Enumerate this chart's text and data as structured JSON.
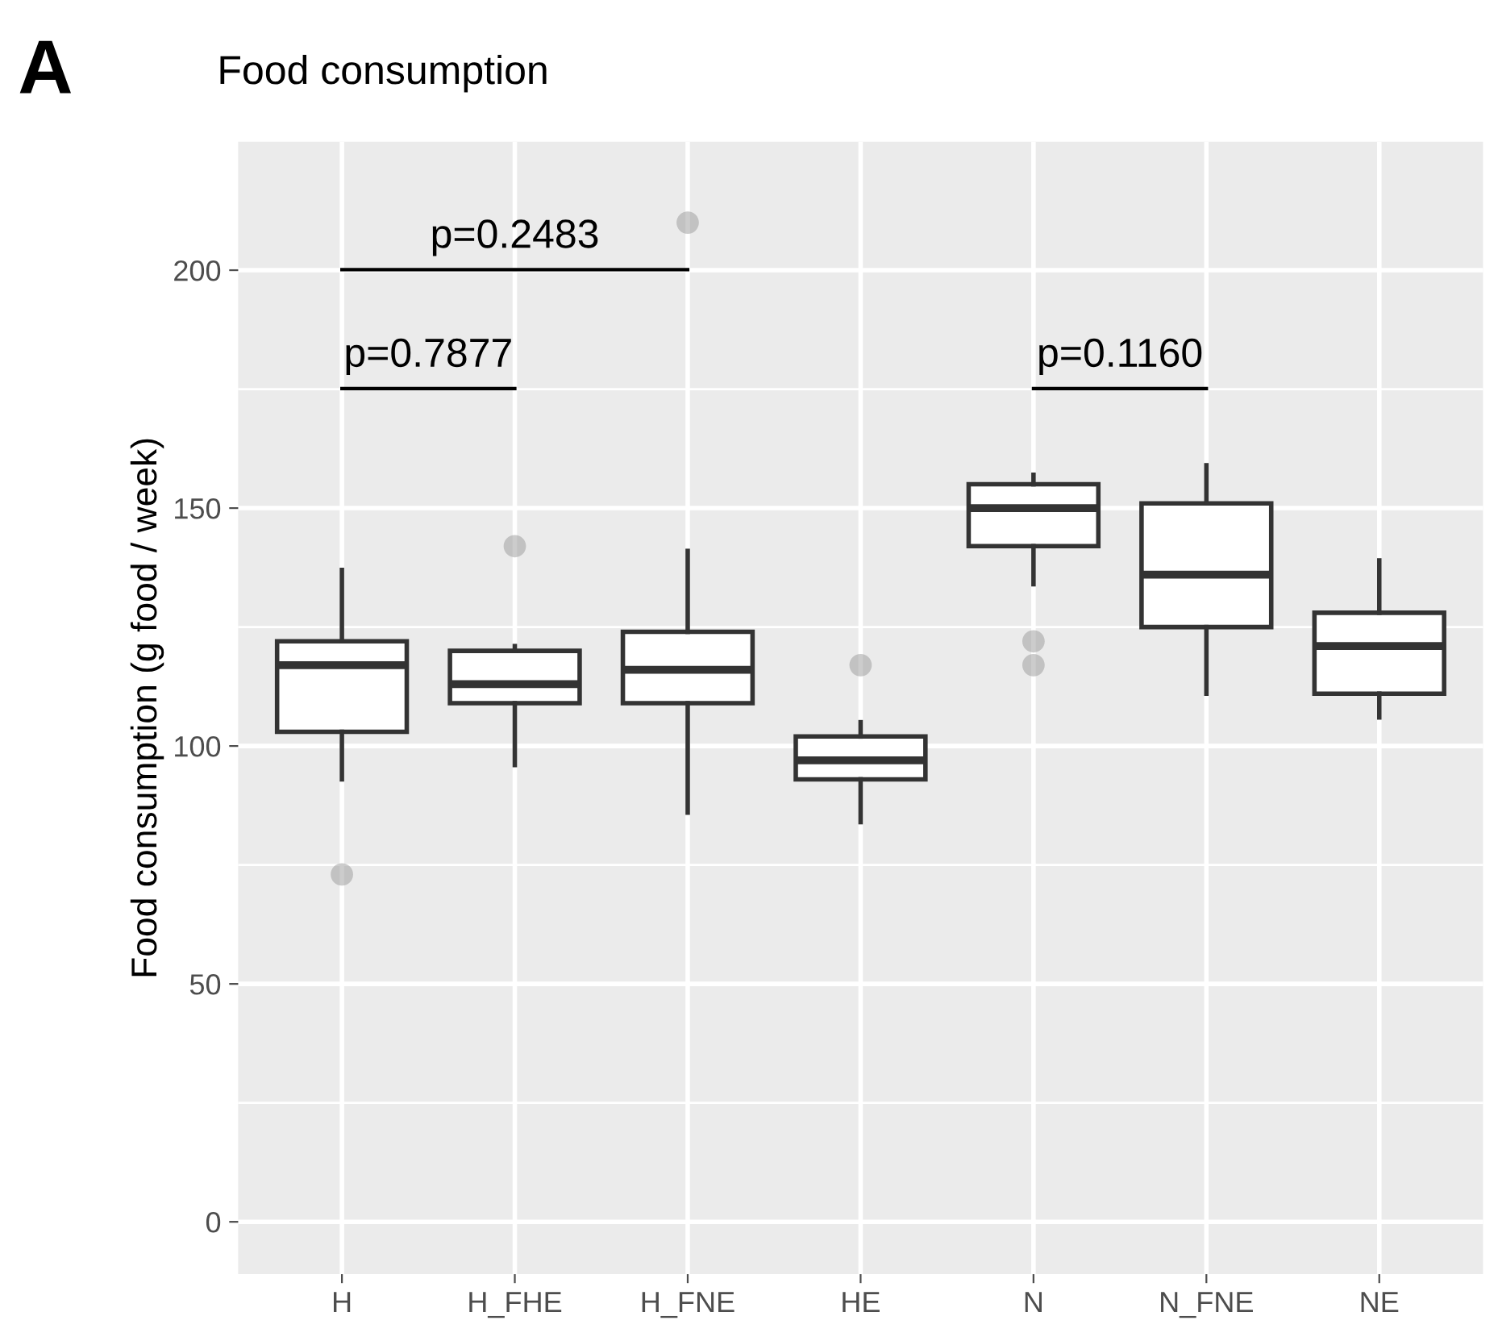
{
  "chart_data": {
    "type": "box",
    "title": "Food consumption",
    "ylabel": "Food consumption (g food / week)",
    "categories": [
      "H",
      "H_FHE",
      "H_FNE",
      "HE",
      "N",
      "N_FNE",
      "NE"
    ],
    "boxes": [
      {
        "low": 93,
        "q1": 103,
        "median": 117,
        "q3": 122,
        "high": 137,
        "outliers": [
          73
        ]
      },
      {
        "low": 96,
        "q1": 109,
        "median": 113,
        "q3": 120,
        "high": 121,
        "outliers": [
          142
        ]
      },
      {
        "low": 86,
        "q1": 109,
        "median": 116,
        "q3": 124,
        "high": 141,
        "outliers": [
          210
        ]
      },
      {
        "low": 84,
        "q1": 93,
        "median": 97,
        "q3": 102,
        "high": 105,
        "outliers": [
          117
        ]
      },
      {
        "low": 134,
        "q1": 142,
        "median": 150,
        "q3": 155,
        "high": 157,
        "outliers": [
          122,
          117
        ]
      },
      {
        "low": 111,
        "q1": 125,
        "median": 136,
        "q3": 151,
        "high": 159
      },
      {
        "low": 106,
        "q1": 111,
        "median": 121,
        "q3": 128,
        "high": 139
      }
    ],
    "ylim": [
      -11,
      227
    ],
    "yticks": [
      0,
      50,
      100,
      150,
      200
    ],
    "grid": true,
    "annotations": [
      "A",
      "p=0.2483",
      "p=0.7877",
      "p=0.1160"
    ]
  }
}
